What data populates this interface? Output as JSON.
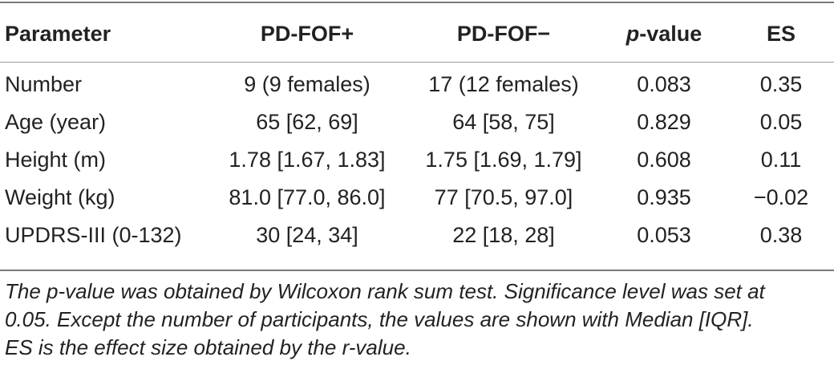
{
  "table": {
    "headers": {
      "parameter": "Parameter",
      "pd_fof_plus": "PD-FOF+",
      "pd_fof_minus": "PD-FOF−",
      "p_value_italic": "p",
      "p_value_suffix": "-value",
      "es": "ES"
    },
    "rows": [
      {
        "parameter": "Number",
        "pd_fof_plus": "9 (9 females)",
        "pd_fof_minus": "17 (12 females)",
        "p_value": "0.083",
        "es": "0.35"
      },
      {
        "parameter": "Age (year)",
        "pd_fof_plus": "65 [62, 69]",
        "pd_fof_minus": "64 [58, 75]",
        "p_value": "0.829",
        "es": "0.05"
      },
      {
        "parameter": "Height (m)",
        "pd_fof_plus": "1.78 [1.67, 1.83]",
        "pd_fof_minus": "1.75 [1.69, 1.79]",
        "p_value": "0.608",
        "es": "0.11"
      },
      {
        "parameter": "Weight (kg)",
        "pd_fof_plus": "81.0 [77.0, 86.0]",
        "pd_fof_minus": "77 [70.5, 97.0]",
        "p_value": "0.935",
        "es": "−0.02"
      },
      {
        "parameter": "UPDRS-III (0-132)",
        "pd_fof_plus": "30 [24, 34]",
        "pd_fof_minus": "22 [18, 28]",
        "p_value": "0.053",
        "es": "0.38"
      }
    ],
    "footnote_lines": [
      "The p-value was obtained by Wilcoxon rank sum test. Significance level was set at",
      "0.05. Except the number of participants, the values are shown with Median [IQR].",
      "ES is the effect size obtained by the r-value."
    ]
  }
}
